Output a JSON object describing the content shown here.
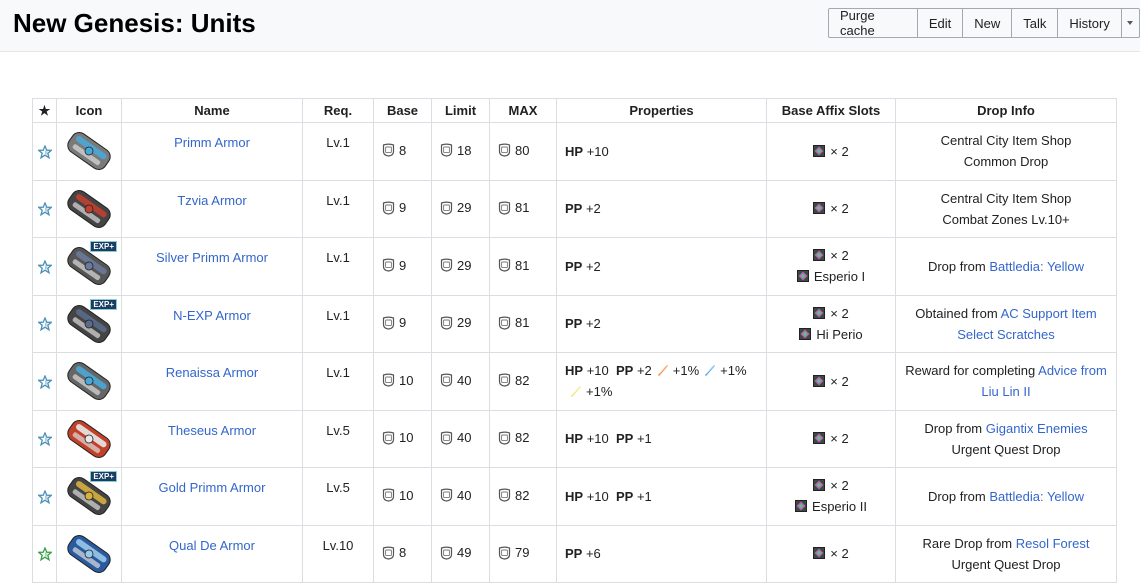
{
  "page": {
    "title": "New Genesis: Units"
  },
  "actions": {
    "purge": "Purge cache",
    "edit": "Edit",
    "new": "New",
    "talk": "Talk",
    "history": "History"
  },
  "table": {
    "headers": {
      "star": "★",
      "icon": "Icon",
      "name": "Name",
      "req": "Req.",
      "base": "Base",
      "limit": "Limit",
      "max": "MAX",
      "properties": "Properties",
      "slots": "Base Affix Slots",
      "drop": "Drop Info"
    },
    "rows": [
      {
        "name": "Primm Armor",
        "req": "Lv.1",
        "base": "8",
        "limit": "18",
        "max": "80",
        "hp": "HP",
        "hp_val": "+10",
        "slots": "× 2",
        "drop1": "Central City Item Shop",
        "drop2": "Common Drop",
        "star_color": "#4a90b8",
        "colors": [
          "#7a7a7a",
          "#4aa8d8"
        ]
      },
      {
        "name": "Tzvia Armor",
        "req": "Lv.1",
        "base": "9",
        "limit": "29",
        "max": "81",
        "pp": "PP",
        "pp_val": "+2",
        "slots": "× 2",
        "drop1": "Central City Item Shop",
        "drop2": "Combat Zones Lv.10+",
        "star_color": "#4a90b8",
        "colors": [
          "#444",
          "#c04030"
        ]
      },
      {
        "name": "Silver Primm Armor",
        "req": "Lv.1",
        "base": "9",
        "limit": "29",
        "max": "81",
        "pp": "PP",
        "pp_val": "+2",
        "slots": "× 2",
        "affix": "Esperio I",
        "drop_pre": "Drop from ",
        "drop_link": "Battledia: Yellow",
        "badge": "EXP+",
        "star_color": "#4a90b8",
        "colors": [
          "#555",
          "#6a7a9a"
        ]
      },
      {
        "name": "N-EXP Armor",
        "req": "Lv.1",
        "base": "9",
        "limit": "29",
        "max": "81",
        "pp": "PP",
        "pp_val": "+2",
        "slots": "× 2",
        "affix": "Hi Perio",
        "drop_pre": "Obtained from ",
        "drop_link": "AC Support Item",
        "drop_link2": "Select Scratches",
        "badge": "EXP+",
        "star_color": "#4a90b8",
        "colors": [
          "#444",
          "#5a6a8a"
        ]
      },
      {
        "name": "Renaissa Armor",
        "req": "Lv.1",
        "base": "10",
        "limit": "40",
        "max": "82",
        "hp": "HP",
        "hp_val": "+10",
        "pp": "PP",
        "pp_val": "+2",
        "fire": "+1%",
        "ice": "+1%",
        "light": "+1%",
        "slots": "× 2",
        "drop_pre": "Reward for completing ",
        "drop_link": "Advice from",
        "drop_link2": "Liu Lin II",
        "star_color": "#4a90b8",
        "colors": [
          "#666",
          "#4aa8d8"
        ]
      },
      {
        "name": "Theseus Armor",
        "req": "Lv.5",
        "base": "10",
        "limit": "40",
        "max": "82",
        "hp": "HP",
        "hp_val": "+10",
        "pp": "PP",
        "pp_val": "+1",
        "slots": "× 2",
        "drop_pre": "Drop from ",
        "drop_link": "Gigantix Enemies",
        "drop2": "Urgent Quest Drop",
        "star_color": "#4a90b8",
        "colors": [
          "#c0402a",
          "#e8e8e8"
        ]
      },
      {
        "name": "Gold Primm Armor",
        "req": "Lv.5",
        "base": "10",
        "limit": "40",
        "max": "82",
        "hp": "HP",
        "hp_val": "+10",
        "pp": "PP",
        "pp_val": "+1",
        "slots": "× 2",
        "affix": "Esperio II",
        "drop_pre": "Drop from ",
        "drop_link": "Battledia: Yellow",
        "badge": "EXP+",
        "star_color": "#4a90b8",
        "colors": [
          "#444",
          "#d8b040"
        ]
      },
      {
        "name": "Qual De Armor",
        "req": "Lv.10",
        "base": "8",
        "limit": "49",
        "max": "79",
        "pp": "PP",
        "pp_val": "+6",
        "slots": "× 2",
        "drop_pre": "Rare Drop from ",
        "drop_link": "Resol Forest",
        "drop2": "Urgent Quest Drop",
        "star_color": "#3aa04a",
        "colors": [
          "#2a5aa0",
          "#9ac8e8"
        ]
      }
    ]
  }
}
